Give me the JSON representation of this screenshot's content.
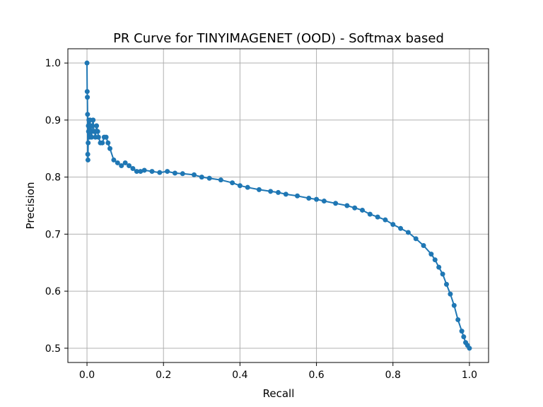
{
  "chart_data": {
    "type": "line",
    "title": "PR Curve for TINYIMAGENET (OOD) - Softmax based",
    "xlabel": "Recall",
    "ylabel": "Precision",
    "xlim": [
      -0.05,
      1.05
    ],
    "ylim": [
      0.475,
      1.025
    ],
    "xticks": [
      0.0,
      0.2,
      0.4,
      0.6,
      0.8,
      1.0
    ],
    "xtick_labels": [
      "0.0",
      "0.2",
      "0.4",
      "0.6",
      "0.8",
      "1.0"
    ],
    "yticks": [
      0.5,
      0.6,
      0.7,
      0.8,
      0.9,
      1.0
    ],
    "ytick_labels": [
      "0.5",
      "0.6",
      "0.7",
      "0.8",
      "0.9",
      "1.0"
    ],
    "grid": true,
    "color": "#1f77b4",
    "marker": "circle",
    "series": [
      {
        "x": [
          0.0,
          0.0005,
          0.001,
          0.0015,
          0.002,
          0.0025,
          0.003,
          0.0035,
          0.004,
          0.005,
          0.006,
          0.007,
          0.008,
          0.009,
          0.01,
          0.012,
          0.014,
          0.016,
          0.018,
          0.02,
          0.022,
          0.025,
          0.028,
          0.03,
          0.035,
          0.04,
          0.045,
          0.05,
          0.055,
          0.06,
          0.07,
          0.08,
          0.09,
          0.1,
          0.11,
          0.12,
          0.13,
          0.14,
          0.15,
          0.17,
          0.19,
          0.21,
          0.23,
          0.25,
          0.28,
          0.3,
          0.32,
          0.35,
          0.38,
          0.4,
          0.42,
          0.45,
          0.48,
          0.5,
          0.52,
          0.55,
          0.58,
          0.6,
          0.62,
          0.65,
          0.68,
          0.7,
          0.72,
          0.74,
          0.76,
          0.78,
          0.8,
          0.82,
          0.84,
          0.86,
          0.88,
          0.9,
          0.91,
          0.92,
          0.93,
          0.94,
          0.95,
          0.96,
          0.97,
          0.98,
          0.985,
          0.99,
          0.995,
          1.0
        ],
        "y": [
          1.0,
          0.95,
          0.94,
          0.91,
          0.84,
          0.83,
          0.86,
          0.89,
          0.88,
          0.9,
          0.89,
          0.87,
          0.9,
          0.89,
          0.88,
          0.87,
          0.89,
          0.9,
          0.88,
          0.88,
          0.87,
          0.89,
          0.88,
          0.87,
          0.86,
          0.86,
          0.87,
          0.87,
          0.86,
          0.85,
          0.83,
          0.825,
          0.82,
          0.825,
          0.82,
          0.815,
          0.81,
          0.81,
          0.812,
          0.81,
          0.808,
          0.81,
          0.807,
          0.806,
          0.804,
          0.8,
          0.798,
          0.795,
          0.79,
          0.785,
          0.782,
          0.778,
          0.775,
          0.773,
          0.77,
          0.767,
          0.763,
          0.761,
          0.758,
          0.754,
          0.75,
          0.746,
          0.742,
          0.735,
          0.73,
          0.725,
          0.717,
          0.71,
          0.703,
          0.692,
          0.68,
          0.665,
          0.655,
          0.642,
          0.63,
          0.612,
          0.595,
          0.575,
          0.55,
          0.53,
          0.52,
          0.51,
          0.505,
          0.5
        ]
      }
    ]
  }
}
